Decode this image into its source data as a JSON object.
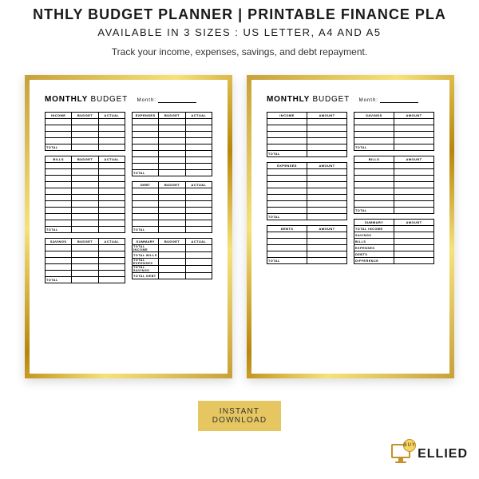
{
  "header": {
    "title": "NTHLY BUDGET PLANNER | PRINTABLE FINANCE PLA",
    "sizes_line": "AVAILABLE IN 3 SIZES : US LETTER, A4 AND A5",
    "tagline": "Track your income, expenses, savings, and debt repayment."
  },
  "page_shared": {
    "title_strong": "MONTHLY",
    "title_light": "BUDGET",
    "month_label": "Month:"
  },
  "page_a": {
    "left": [
      {
        "headers": [
          "INCOME",
          "BUDGET",
          "ACTUAL"
        ],
        "rows": 4,
        "footer": "TOTAL"
      },
      {
        "headers": [
          "BILLS",
          "BUDGET",
          "ACTUAL"
        ],
        "rows": 10,
        "footer": "TOTAL"
      },
      {
        "headers": [
          "SAVINGS",
          "BUDGET",
          "ACTUAL"
        ],
        "rows": 5,
        "footer": "TOTAL"
      }
    ],
    "right": [
      {
        "headers": [
          "EXPENSES",
          "BUDGET",
          "ACTUAL"
        ],
        "rows": 8,
        "footer": "TOTAL"
      },
      {
        "headers": [
          "DEBT",
          "BUDGET",
          "ACTUAL"
        ],
        "rows": 6,
        "footer": "TOTAL"
      },
      {
        "headers": [
          "SUMMARY",
          "BUDGET",
          "ACTUAL"
        ],
        "label_rows": [
          "TOTAL INCOME",
          "TOTAL BILLS",
          "TOTAL EXPENSES",
          "TOTAL SAVINGS",
          "TOTAL DEBT"
        ]
      }
    ]
  },
  "page_b": {
    "left": [
      {
        "headers": [
          "INCOME",
          "AMOUNT"
        ],
        "rows": 5,
        "footer": "TOTAL"
      },
      {
        "headers": [
          "EXPENSES",
          "AMOUNT"
        ],
        "rows": 7,
        "footer": "TOTAL"
      },
      {
        "headers": [
          "DEBTS",
          "AMOUNT"
        ],
        "rows": 4,
        "footer": "TOTAL"
      }
    ],
    "right": [
      {
        "headers": [
          "SAVINGS",
          "AMOUNT"
        ],
        "rows": 4,
        "footer": "TOTAL"
      },
      {
        "headers": [
          "BILLS",
          "AMOUNT"
        ],
        "rows": 7,
        "footer": "TOTAL"
      },
      {
        "headers": [
          "SUMMARY",
          "AMOUNT"
        ],
        "label_rows": [
          "TOTAL INCOME",
          "SAVINGS",
          "BILLS",
          "EXPENSES",
          "DEBTS"
        ],
        "footer": "DIFFERENCE"
      }
    ]
  },
  "badge": "INSTANT\nDOWNLOAD",
  "logo": {
    "buy": "BUY",
    "text": "ELLIED"
  },
  "colors": {
    "gold_a": "#c9a23a",
    "gold_b": "#f6e27a",
    "badge_bg": "#e6c661",
    "text": "#1a1a1a"
  }
}
